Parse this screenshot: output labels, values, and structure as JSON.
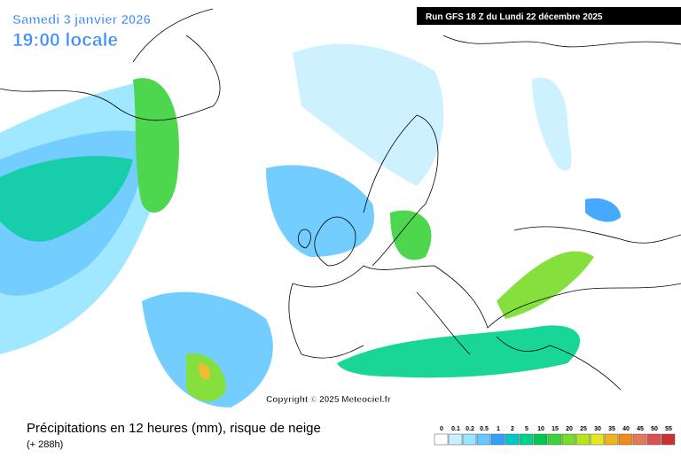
{
  "header": {
    "date": "Samedi 3 janvier 2026",
    "time": "19:00 locale",
    "run": "Run GFS 18 Z du Lundi 22 décembre 2025"
  },
  "copyright": "Copyright © 2025 Meteociel.fr",
  "footer": {
    "title": "Précipitations en 12 heures (mm), risque de neige",
    "lead": "(+ 288h)"
  },
  "legend": [
    {
      "label": "0",
      "color": "#ffffff"
    },
    {
      "label": "0.1",
      "color": "#c8f0ff"
    },
    {
      "label": "0.2",
      "color": "#96e6ff"
    },
    {
      "label": "0.5",
      "color": "#64c8ff"
    },
    {
      "label": "1",
      "color": "#32a0ff"
    },
    {
      "label": "2",
      "color": "#00c8c8"
    },
    {
      "label": "5",
      "color": "#00d28c"
    },
    {
      "label": "10",
      "color": "#00c850"
    },
    {
      "label": "15",
      "color": "#3cd23c"
    },
    {
      "label": "20",
      "color": "#78dc28"
    },
    {
      "label": "25",
      "color": "#b4e61e"
    },
    {
      "label": "30",
      "color": "#e6e61e"
    },
    {
      "label": "35",
      "color": "#f0b41e"
    },
    {
      "label": "40",
      "color": "#f08c1e"
    },
    {
      "label": "45",
      "color": "#e6785a"
    },
    {
      "label": "50",
      "color": "#dc5050"
    },
    {
      "label": "55",
      "color": "#c83232"
    }
  ]
}
